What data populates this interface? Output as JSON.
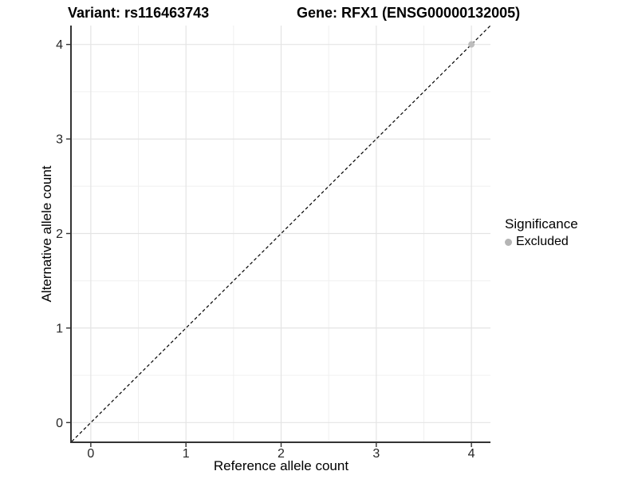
{
  "chart_data": {
    "type": "scatter",
    "title_left": "Variant: rs116463743",
    "title_right": "Gene: RFX1 (ENSG00000132005)",
    "xlabel": "Reference allele count",
    "ylabel": "Alternative allele count",
    "xlim": [
      -0.2,
      4.2
    ],
    "ylim": [
      -0.2,
      4.2
    ],
    "x_major_ticks": [
      0,
      1,
      2,
      3,
      4
    ],
    "y_major_ticks": [
      0,
      1,
      2,
      3,
      4
    ],
    "minor_ticks": [
      0.5,
      1.5,
      2.5,
      3.5
    ],
    "grid": true,
    "points": [
      {
        "x": 4,
        "y": 4,
        "series": "Excluded"
      }
    ],
    "reference_line": {
      "kind": "abline",
      "slope": 1,
      "intercept": 0,
      "style": "dashed",
      "color": "#000000"
    },
    "legend": {
      "title": "Significance",
      "position": "right",
      "items": [
        {
          "label": "Excluded",
          "color": "#b5b5b5"
        }
      ]
    },
    "colors": {
      "point": "#bdbdbd",
      "grid_major": "#e4e4e4",
      "grid_minor": "#f0f0f0",
      "axis_line": "#333333",
      "tick_text": "#262626",
      "background": "#ffffff"
    }
  }
}
